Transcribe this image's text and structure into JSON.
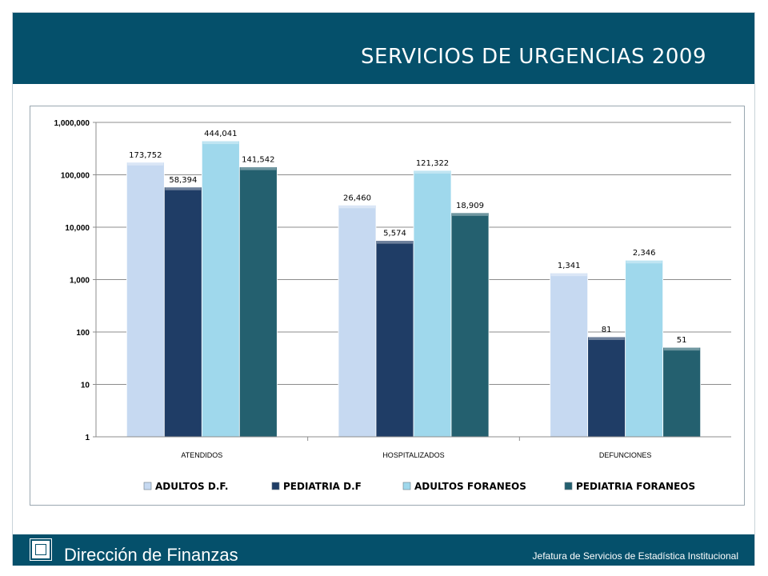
{
  "header": {
    "title": "SERVICIOS DE URGENCIAS 2009"
  },
  "footer": {
    "left_text": "Dirección de Finanzas",
    "right_text": "Jefatura de Servicios de Estadística Institucional",
    "logo_icon": "institution-logo-icon"
  },
  "colors": {
    "header_bg": "#05506b",
    "series": [
      "#c6d9f1",
      "#1f3d66",
      "#9fd8ec",
      "#24606f"
    ]
  },
  "chart_data": {
    "type": "bar",
    "yscale": "log",
    "ylim": [
      1,
      1000000
    ],
    "yticks": [
      1,
      10,
      100,
      1000,
      10000,
      100000,
      1000000
    ],
    "ytick_labels": [
      "1",
      "10",
      "100",
      "1,000",
      "10,000",
      "100,000",
      "1,000,000"
    ],
    "grid": true,
    "legend_position": "bottom",
    "categories": [
      "ATENDIDOS",
      "HOSPITALIZADOS",
      "DEFUNCIONES"
    ],
    "series": [
      {
        "name": "ADULTOS D.F.",
        "values": [
          173752,
          26460,
          1341
        ],
        "labels": [
          "173,752",
          "26,460",
          "1,341"
        ]
      },
      {
        "name": "PEDIATRIA D.F",
        "values": [
          58394,
          5574,
          81
        ],
        "labels": [
          "58,394",
          "5,574",
          "81"
        ]
      },
      {
        "name": "ADULTOS FORANEOS",
        "values": [
          444041,
          121322,
          2346
        ],
        "labels": [
          "444,041",
          "121,322",
          "2,346"
        ]
      },
      {
        "name": "PEDIATRIA FORANEOS",
        "values": [
          141542,
          18909,
          51
        ],
        "labels": [
          "141,542",
          "18,909",
          "51"
        ]
      }
    ]
  }
}
